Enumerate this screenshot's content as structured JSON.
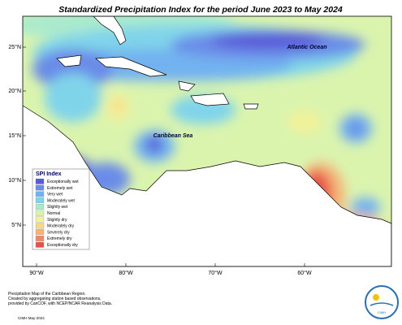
{
  "map": {
    "title": "Standardized Precipitation Index for the period June 2023 to May 2024",
    "labels": [
      "Atlantic Ocean",
      "Caribbean Sea"
    ],
    "lat_labels": [
      "25°N",
      "20°N",
      "15°N",
      "10°N",
      "5°N"
    ],
    "lon_labels": [
      "90°W",
      "80°W",
      "70°W",
      "60°W"
    ],
    "legend": {
      "title": "SPI Index",
      "items": [
        {
          "name": "Exceptionally wet",
          "color": "#5a5ad8"
        },
        {
          "name": "Extremely wet",
          "color": "#6a8ce8"
        },
        {
          "name": "Very wet",
          "color": "#72b2f0"
        },
        {
          "name": "Moderately wet",
          "color": "#80d4ea"
        },
        {
          "name": "Slightly wet",
          "color": "#aaeacc"
        },
        {
          "name": "Normal",
          "color": "#daf4ae"
        },
        {
          "name": "Slightly dry",
          "color": "#f2f29a"
        },
        {
          "name": "Moderately dry",
          "color": "#f6d888"
        },
        {
          "name": "Severely dry",
          "color": "#f6b478"
        },
        {
          "name": "Extremely dry",
          "color": "#f2886a"
        },
        {
          "name": "Exceptionally dry",
          "color": "#e6524a"
        }
      ]
    },
    "footnote": [
      "Precipitation Map of the Caribbean Region.",
      "Created by aggregating station based observations,",
      "provided by CariCOF, with NCEP/NCAR Reanalysis Data."
    ],
    "credit": "CIMH May-2024",
    "logo_text": "CIMH"
  }
}
